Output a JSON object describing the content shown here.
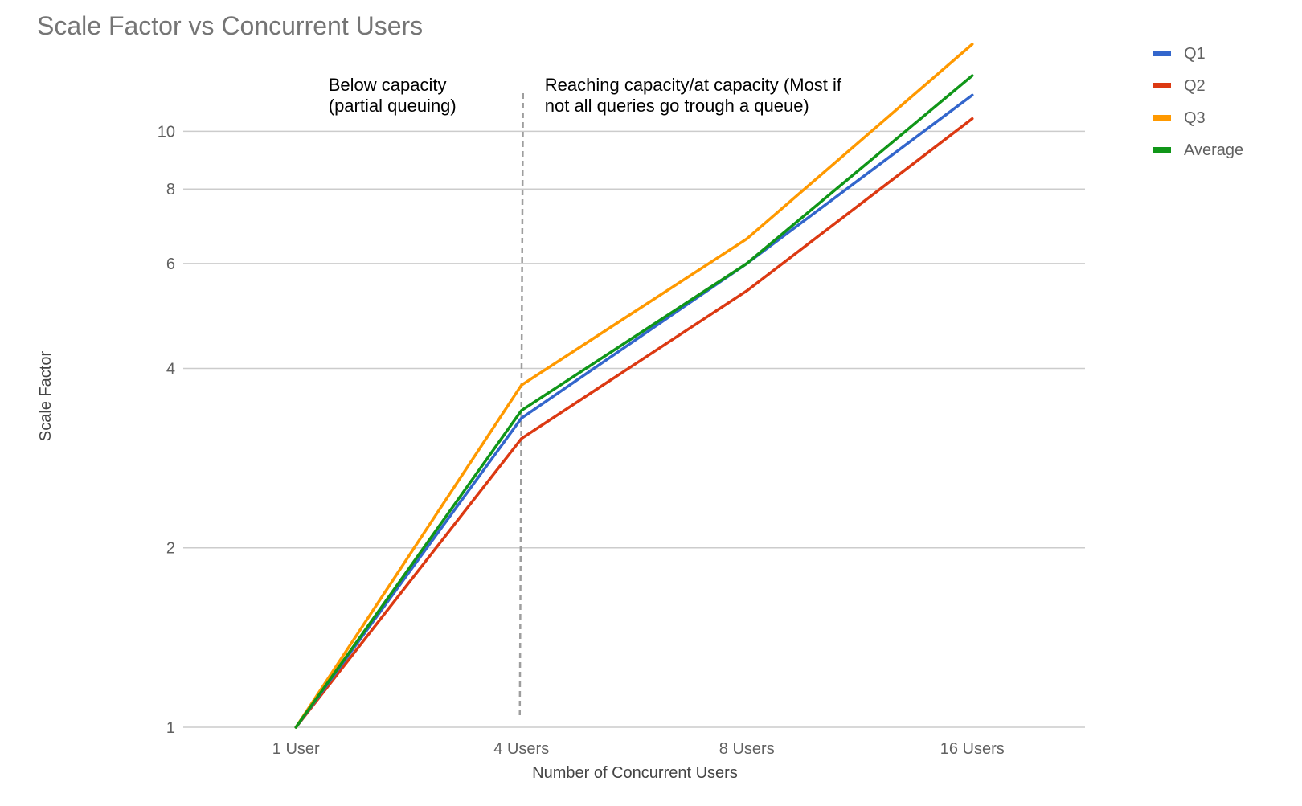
{
  "chart_data": {
    "type": "line",
    "title": "Scale Factor vs Concurrent Users",
    "xlabel": "Number of Concurrent Users",
    "ylabel": "Scale Factor",
    "y_scale": "log",
    "ylim": [
      1,
      14
    ],
    "y_ticks": [
      1,
      2,
      4,
      6,
      8,
      10
    ],
    "categories": [
      "1 User",
      "4 Users",
      "8 Users",
      "16 Users"
    ],
    "series": [
      {
        "name": "Q1",
        "color": "#3366cc",
        "values": [
          1,
          3.3,
          6.0,
          11.5
        ]
      },
      {
        "name": "Q2",
        "color": "#dc3912",
        "values": [
          1,
          3.05,
          5.4,
          10.5
        ]
      },
      {
        "name": "Q3",
        "color": "#ff9900",
        "values": [
          1,
          3.75,
          6.6,
          14.0
        ]
      },
      {
        "name": "Average",
        "color": "#109618",
        "values": [
          1,
          3.4,
          6.0,
          12.4
        ]
      }
    ],
    "grid": true,
    "legend_position": "right",
    "annotations": {
      "divider_at": "4 Users",
      "left_text": [
        "Below capacity",
        "(partial queuing)"
      ],
      "right_text": [
        "Reaching capacity/at capacity  (Most if",
        "not all queries go trough a queue)"
      ]
    }
  }
}
